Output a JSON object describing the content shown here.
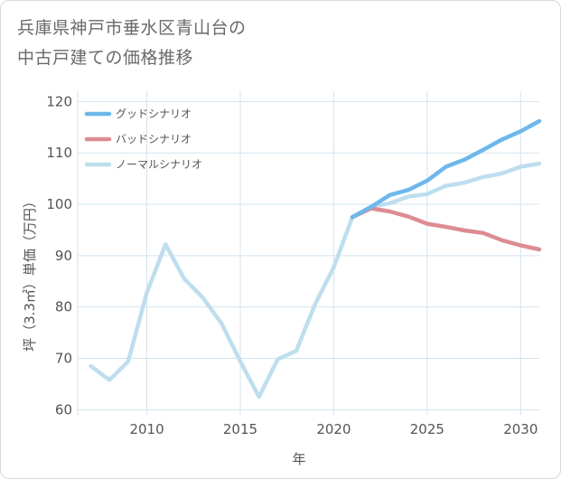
{
  "title_line1": "兵庫県神戸市垂水区青山台の",
  "title_line2": "中古戸建ての価格推移",
  "chart_data": {
    "type": "line",
    "xlabel": "年",
    "ylabel": "坪（3.3㎡）単価（万円）",
    "xlim": [
      2006.3,
      2031
    ],
    "ylim": [
      59,
      122
    ],
    "x_ticks": [
      2010,
      2015,
      2020,
      2025,
      2030
    ],
    "y_ticks": [
      60,
      70,
      80,
      90,
      100,
      110,
      120
    ],
    "grid": true,
    "legend_position": "top-left",
    "series": [
      {
        "name": "グッドシナリオ",
        "color": "#6cb8ec",
        "x": [
          2021,
          2022,
          2023,
          2024,
          2025,
          2026,
          2027,
          2028,
          2029,
          2030,
          2031
        ],
        "values": [
          97.5,
          99.5,
          101.8,
          102.8,
          104.6,
          107.3,
          108.7,
          110.6,
          112.6,
          114.2,
          116.2
        ]
      },
      {
        "name": "バッドシナリオ",
        "color": "#dc8c92",
        "x": [
          2021,
          2022,
          2023,
          2024,
          2025,
          2026,
          2027,
          2028,
          2029,
          2030,
          2031
        ],
        "values": [
          97.5,
          99.2,
          98.6,
          97.6,
          96.2,
          95.6,
          94.9,
          94.4,
          93.0,
          92.0,
          91.2
        ]
      },
      {
        "name": "ノーマルシナリオ",
        "color": "#bedeee",
        "x": [
          2007,
          2008,
          2009,
          2010,
          2011,
          2012,
          2013,
          2014,
          2015,
          2016,
          2017,
          2018,
          2019,
          2020,
          2021,
          2022,
          2023,
          2024,
          2025,
          2026,
          2027,
          2028,
          2029,
          2030,
          2031
        ],
        "values": [
          68.5,
          65.8,
          69.4,
          82.8,
          92.2,
          85.5,
          81.8,
          76.8,
          69.4,
          62.5,
          69.8,
          71.5,
          80.5,
          87.7,
          97.5,
          99.5,
          100.2,
          101.5,
          102.0,
          103.6,
          104.2,
          105.3,
          106.0,
          107.3,
          107.9
        ]
      }
    ]
  }
}
